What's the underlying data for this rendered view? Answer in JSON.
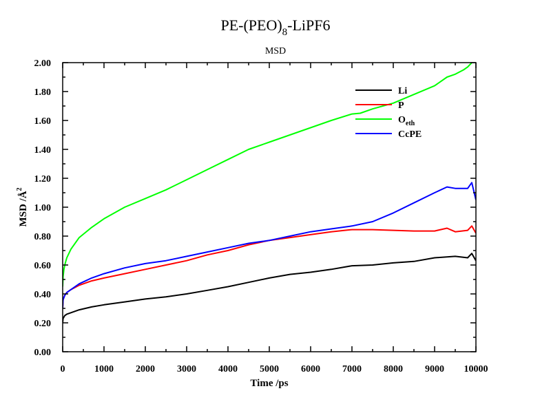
{
  "chart_data": {
    "type": "line",
    "title_main": "PE-(PEO)",
    "title_sub": "8",
    "title_tail": "-LiPF6",
    "subtitle": "MSD",
    "xlabel": "Time /ps",
    "ylabel_main": "MSD /Å",
    "ylabel_sup": "2",
    "xlim": [
      0,
      10000
    ],
    "ylim": [
      0.0,
      2.0
    ],
    "xticks": [
      0,
      1000,
      2000,
      3000,
      4000,
      5000,
      6000,
      7000,
      8000,
      9000,
      10000
    ],
    "xtick_labels": [
      "0",
      "1000",
      "2000",
      "3000",
      "4000",
      "5000",
      "6000",
      "7000",
      "8000",
      "9000",
      "10000"
    ],
    "yticks": [
      0.0,
      0.2,
      0.4,
      0.6,
      0.8,
      1.0,
      1.2,
      1.4,
      1.6,
      1.8,
      2.0
    ],
    "ytick_labels": [
      "0.00",
      "0.20",
      "0.40",
      "0.60",
      "0.80",
      "1.00",
      "1.20",
      "1.40",
      "1.60",
      "1.80",
      "2.00"
    ],
    "grid": false,
    "legend_position": "top-right",
    "series": [
      {
        "name": "Li",
        "color": "#000000",
        "x": [
          0,
          10,
          50,
          100,
          200,
          400,
          700,
          1000,
          1500,
          2000,
          2500,
          3000,
          3500,
          4000,
          4500,
          5000,
          5500,
          6000,
          6500,
          7000,
          7500,
          8000,
          8500,
          9000,
          9500,
          9800,
          9900,
          10000
        ],
        "y": [
          0.2,
          0.23,
          0.25,
          0.26,
          0.27,
          0.29,
          0.31,
          0.325,
          0.345,
          0.365,
          0.38,
          0.4,
          0.425,
          0.45,
          0.48,
          0.51,
          0.535,
          0.55,
          0.57,
          0.595,
          0.6,
          0.615,
          0.625,
          0.65,
          0.66,
          0.65,
          0.68,
          0.63
        ]
      },
      {
        "name": "P",
        "color": "#ff0000",
        "x": [
          0,
          10,
          50,
          100,
          200,
          400,
          700,
          1000,
          1500,
          2000,
          2500,
          3000,
          3500,
          4000,
          4500,
          5000,
          5500,
          6000,
          6500,
          7000,
          7500,
          8000,
          8500,
          9000,
          9300,
          9500,
          9800,
          9900,
          10000
        ],
        "y": [
          0.3,
          0.36,
          0.39,
          0.41,
          0.43,
          0.46,
          0.49,
          0.51,
          0.54,
          0.57,
          0.6,
          0.63,
          0.67,
          0.7,
          0.74,
          0.77,
          0.79,
          0.81,
          0.83,
          0.845,
          0.845,
          0.84,
          0.835,
          0.835,
          0.855,
          0.83,
          0.84,
          0.87,
          0.82
        ]
      },
      {
        "name": "O",
        "name_sub": "eth",
        "color": "#00ff00",
        "x": [
          0,
          10,
          30,
          60,
          100,
          200,
          400,
          700,
          1000,
          1500,
          2000,
          2500,
          3000,
          3500,
          4000,
          4500,
          5000,
          5500,
          6000,
          6500,
          7000,
          7200,
          7500,
          8000,
          8500,
          9000,
          9300,
          9500,
          9700,
          9800,
          9900,
          10000
        ],
        "y": [
          0.45,
          0.52,
          0.57,
          0.61,
          0.65,
          0.71,
          0.79,
          0.86,
          0.92,
          1.0,
          1.06,
          1.12,
          1.19,
          1.26,
          1.33,
          1.4,
          1.45,
          1.5,
          1.55,
          1.6,
          1.645,
          1.65,
          1.68,
          1.72,
          1.78,
          1.84,
          1.9,
          1.92,
          1.95,
          1.97,
          2.0,
          2.02
        ]
      },
      {
        "name": "CcPE",
        "color": "#0000ff",
        "x": [
          0,
          10,
          50,
          100,
          200,
          400,
          700,
          1000,
          1500,
          2000,
          2500,
          3000,
          3500,
          4000,
          4500,
          5000,
          5500,
          6000,
          6500,
          7000,
          7500,
          8000,
          8500,
          9000,
          9300,
          9500,
          9800,
          9900,
          10000
        ],
        "y": [
          0.3,
          0.36,
          0.39,
          0.41,
          0.43,
          0.47,
          0.51,
          0.54,
          0.58,
          0.61,
          0.63,
          0.66,
          0.69,
          0.72,
          0.75,
          0.77,
          0.8,
          0.83,
          0.85,
          0.87,
          0.9,
          0.96,
          1.03,
          1.1,
          1.14,
          1.13,
          1.13,
          1.17,
          1.05
        ]
      }
    ]
  }
}
